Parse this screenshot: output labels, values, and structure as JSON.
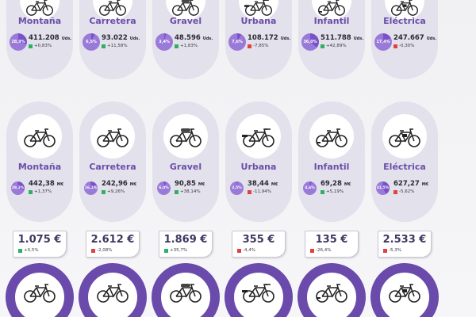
{
  "units": [
    {
      "category": "Montaña",
      "share": "28,9%",
      "share_pct": 28.9,
      "value": "411.208",
      "unit": "Uds.",
      "change": "+0,83%",
      "trend": "up",
      "icon": "mountain-bike-icon"
    },
    {
      "category": "Carretera",
      "share": "6,5%",
      "share_pct": 6.5,
      "value": "93.022",
      "unit": "Uds.",
      "change": "+11,58%",
      "trend": "up",
      "icon": "road-bike-icon"
    },
    {
      "category": "Gravel",
      "share": "3,4%",
      "share_pct": 3.4,
      "value": "48.596",
      "unit": "Uds.",
      "change": "+1,83%",
      "trend": "up",
      "icon": "gravel-bike-icon"
    },
    {
      "category": "Urbana",
      "share": "7,6%",
      "share_pct": 7.6,
      "value": "108.172",
      "unit": "Uds.",
      "change": "-7,85%",
      "trend": "down",
      "icon": "city-bike-icon"
    },
    {
      "category": "Infantil",
      "share": "36,0%",
      "share_pct": 36.0,
      "value": "511.788",
      "unit": "Uds.",
      "change": "+42,89%",
      "trend": "up",
      "icon": "kids-bike-icon"
    },
    {
      "category": "Eléctrica",
      "share": "17,4%",
      "share_pct": 17.4,
      "value": "247.667",
      "unit": "Uds.",
      "change": "-0,30%",
      "trend": "down",
      "icon": "e-bike-icon"
    }
  ],
  "revenue": [
    {
      "category": "Montaña",
      "share": "29,3%",
      "share_pct": 29.3,
      "value": "442,38",
      "unit": "M€",
      "change": "+1,37%",
      "trend": "up",
      "icon": "mountain-bike-icon"
    },
    {
      "category": "Carretera",
      "share": "16,1%",
      "share_pct": 16.1,
      "value": "242,96",
      "unit": "M€",
      "change": "+9,26%",
      "trend": "up",
      "icon": "road-bike-icon"
    },
    {
      "category": "Gravel",
      "share": "6,0%",
      "share_pct": 6.0,
      "value": "90,85",
      "unit": "M€",
      "change": "+38,14%",
      "trend": "up",
      "icon": "gravel-bike-icon"
    },
    {
      "category": "Urbana",
      "share": "2,5%",
      "share_pct": 2.5,
      "value": "38,44",
      "unit": "M€",
      "change": "-11,94%",
      "trend": "down",
      "icon": "city-bike-icon"
    },
    {
      "category": "Infantil",
      "share": "4,6%",
      "share_pct": 4.6,
      "value": "69,28",
      "unit": "M€",
      "change": "+5,19%",
      "trend": "up",
      "icon": "kids-bike-icon"
    },
    {
      "category": "Eléctrica",
      "share": "41,5%",
      "share_pct": 41.5,
      "value": "627,27",
      "unit": "M€",
      "change": "-5,62%",
      "trend": "down",
      "icon": "e-bike-icon"
    }
  ],
  "prices": [
    {
      "value": "1.075 €",
      "change": "+0,5%",
      "trend": "up"
    },
    {
      "value": "2.612 €",
      "change": "-2,08%",
      "trend": "down"
    },
    {
      "value": "1.869 €",
      "change": "+35,7%",
      "trend": "up"
    },
    {
      "value": "355 €",
      "change": "-4,4%",
      "trend": "down"
    },
    {
      "value": "135 €",
      "change": "-26,4%",
      "trend": "down"
    },
    {
      "value": "2.533 €",
      "change": "-5,3%",
      "trend": "down"
    }
  ],
  "colors": {
    "accent": "#6b4ea8",
    "card": "#e3e1ec",
    "up": "#2fae64",
    "down": "#e24141",
    "ring": "#6a4aab"
  }
}
